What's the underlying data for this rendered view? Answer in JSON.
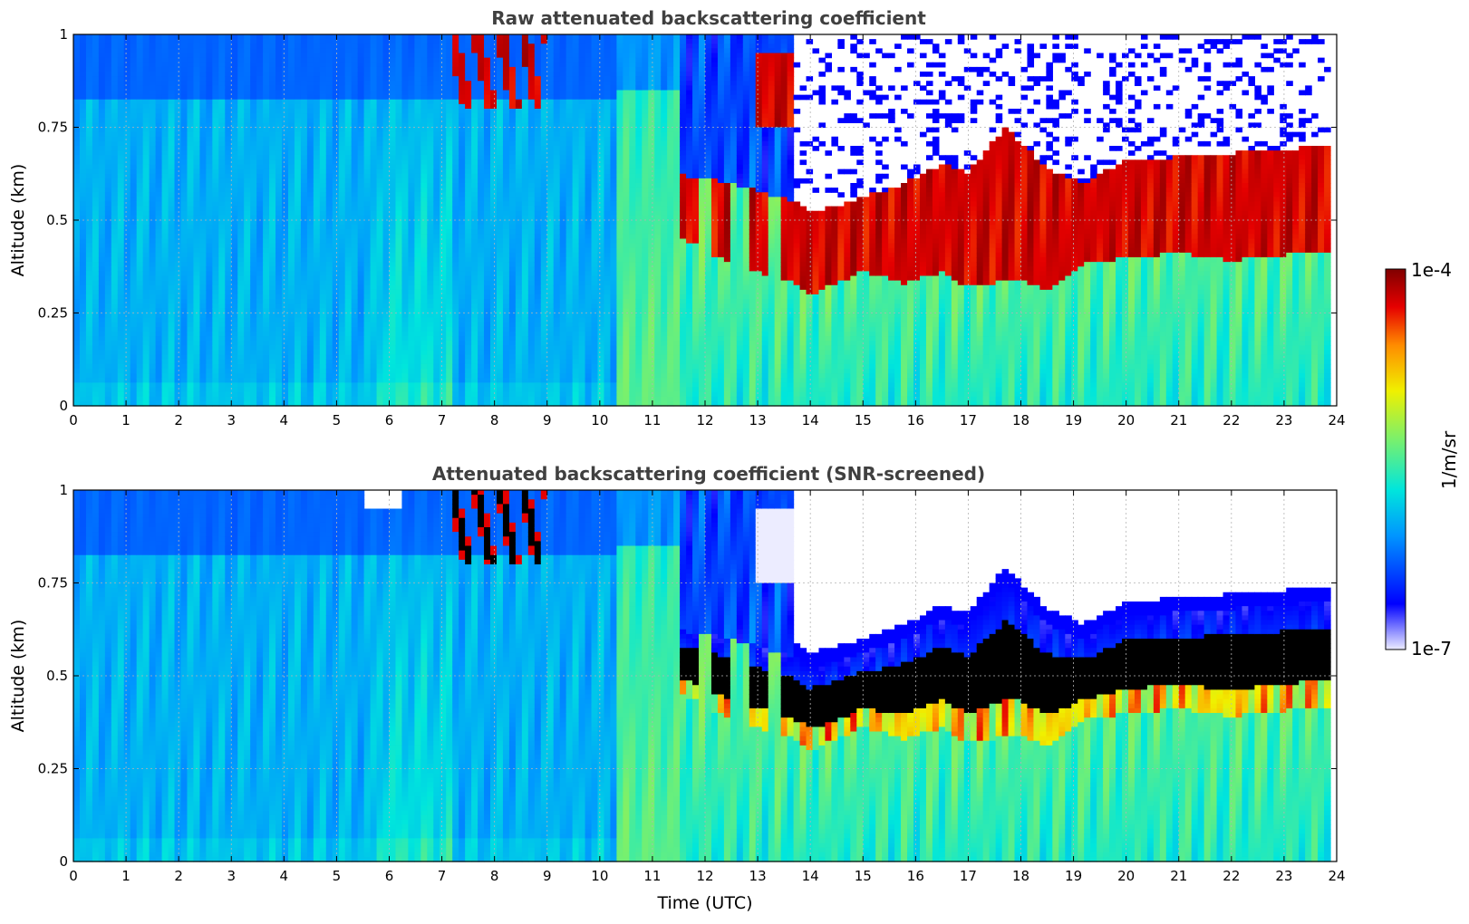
{
  "chart_data": [
    {
      "type": "heatmap",
      "title": "Raw attenuated backscattering coefficient",
      "xlabel": "",
      "ylabel": "Altitude (km)",
      "xlim": [
        0,
        24
      ],
      "ylim": [
        0,
        1
      ],
      "x_ticks": [
        "0",
        "1",
        "2",
        "3",
        "4",
        "5",
        "6",
        "7",
        "8",
        "9",
        "10",
        "11",
        "12",
        "13",
        "14",
        "15",
        "16",
        "17",
        "18",
        "19",
        "20",
        "21",
        "22",
        "23",
        "24"
      ],
      "y_ticks": [
        "0",
        "0.25",
        "0.5",
        "0.75",
        "1"
      ],
      "grid": true,
      "colormap": "jet",
      "color_scale": "log",
      "data_end_hour": 23.9,
      "regimes": [
        {
          "hours": [
            0,
            10.3
          ],
          "description": "low-level aerosol, blue/cyan"
        },
        {
          "hours": [
            10.3,
            11.5
          ],
          "description": "aerosol increasing, green"
        },
        {
          "hours": [
            11.5,
            13.7
          ],
          "description": "broken cloud 0.35-0.7 km"
        },
        {
          "hours": [
            13.7,
            23.9
          ],
          "description": "cloud layer ~0.3-0.6 km, noise above"
        }
      ],
      "cloud_base_km": [
        {
          "hour": 11.6,
          "base": 0.45
        },
        {
          "hour": 12.5,
          "base": 0.38
        },
        {
          "hour": 13.7,
          "base": 0.33
        },
        {
          "hour": 14,
          "base": 0.3
        },
        {
          "hour": 15,
          "base": 0.36
        },
        {
          "hour": 15.8,
          "base": 0.33
        },
        {
          "hour": 16.5,
          "base": 0.36
        },
        {
          "hour": 17,
          "base": 0.32
        },
        {
          "hour": 18,
          "base": 0.34
        },
        {
          "hour": 18.5,
          "base": 0.31
        },
        {
          "hour": 19.2,
          "base": 0.38
        },
        {
          "hour": 20,
          "base": 0.4
        },
        {
          "hour": 21,
          "base": 0.41
        },
        {
          "hour": 22,
          "base": 0.39
        },
        {
          "hour": 23.9,
          "base": 0.42
        }
      ],
      "cloud_top_km": [
        {
          "hour": 11.6,
          "base": 0.62
        },
        {
          "hour": 12.5,
          "base": 0.6
        },
        {
          "hour": 13.7,
          "base": 0.55
        },
        {
          "hour": 14,
          "base": 0.52
        },
        {
          "hour": 15,
          "base": 0.56
        },
        {
          "hour": 15.8,
          "base": 0.6
        },
        {
          "hour": 16.5,
          "base": 0.65
        },
        {
          "hour": 17,
          "base": 0.63
        },
        {
          "hour": 17.7,
          "base": 0.75
        },
        {
          "hour": 18.5,
          "base": 0.64
        },
        {
          "hour": 19.2,
          "base": 0.6
        },
        {
          "hour": 20,
          "base": 0.66
        },
        {
          "hour": 21,
          "base": 0.67
        },
        {
          "hour": 22,
          "base": 0.68
        },
        {
          "hour": 23.9,
          "base": 0.7
        }
      ]
    },
    {
      "type": "heatmap",
      "title": "Attenuated backscattering coefficient (SNR-screened)",
      "xlabel": "Time (UTC)",
      "ylabel": "Altitude (km)",
      "xlim": [
        0,
        24
      ],
      "ylim": [
        0,
        1
      ],
      "x_ticks": [
        "0",
        "1",
        "2",
        "3",
        "4",
        "5",
        "6",
        "7",
        "8",
        "9",
        "10",
        "11",
        "12",
        "13",
        "14",
        "15",
        "16",
        "17",
        "18",
        "19",
        "20",
        "21",
        "22",
        "23",
        "24"
      ],
      "y_ticks": [
        "0",
        "0.25",
        "0.5",
        "0.75",
        "1"
      ],
      "grid": true,
      "colormap": "jet",
      "color_scale": "log",
      "data_end_hour": 23.9,
      "screening": "values above cloud top removed (white); cloud core shown black"
    }
  ],
  "colorbar": {
    "label": "1/m/sr",
    "max_label": "1e-4",
    "min_label": "1e-7",
    "colors": [
      "#ececff",
      "#0000ff",
      "#0096ff",
      "#00e6dc",
      "#78f06e",
      "#f0f000",
      "#ff8c00",
      "#e60000",
      "#800000"
    ]
  }
}
